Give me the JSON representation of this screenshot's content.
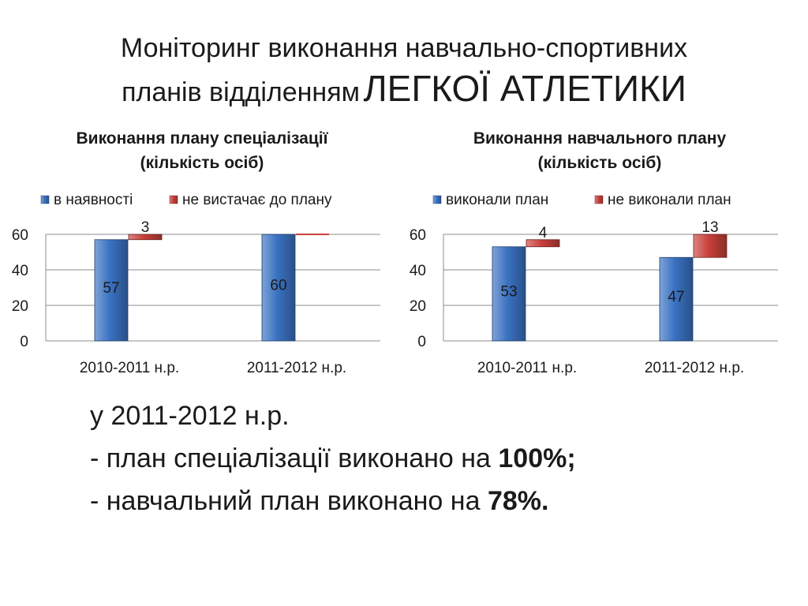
{
  "title": {
    "line1": "Моніторинг виконання навчально-спортивних",
    "line2_prefix": "планів відділенням",
    "line2_emphasis": "ЛЕГКОЇ АТЛЕТИКИ"
  },
  "chart_data": [
    {
      "type": "bar",
      "title_line1": "Виконання плану спеціалізації",
      "title_line2": "(кількість осіб)",
      "categories": [
        "2010-2011 н.р.",
        "2011-2012 н.р."
      ],
      "series": [
        {
          "name": "в наявності",
          "values": [
            57,
            60
          ],
          "color": "#3a72c2"
        },
        {
          "name": "не вистачає до плану",
          "values": [
            3,
            0
          ],
          "color": "#c8403b"
        }
      ],
      "data_labels": [
        [
          "57",
          "60"
        ],
        [
          "3",
          ""
        ]
      ],
      "ylim": [
        0,
        60
      ],
      "yticks": [
        0,
        20,
        40,
        60
      ],
      "grid": true,
      "legend": "top"
    },
    {
      "type": "bar",
      "title_line1": "Виконання навчального плану",
      "title_line2": "(кількість осіб)",
      "categories": [
        "2010-2011 н.р.",
        "2011-2012 н.р."
      ],
      "series": [
        {
          "name": "виконали план",
          "values": [
            53,
            47
          ],
          "color": "#3a72c2"
        },
        {
          "name": "не виконали план",
          "values": [
            4,
            13
          ],
          "color": "#c8403b"
        }
      ],
      "data_labels": [
        [
          "53",
          "47"
        ],
        [
          "4",
          "13"
        ]
      ],
      "ylim": [
        0,
        60
      ],
      "yticks": [
        0,
        20,
        40,
        60
      ],
      "grid": true,
      "legend": "top"
    }
  ],
  "summary": {
    "line1": "у 2011-2012 н.р.",
    "line2_text": "- план спеціалізації виконано на ",
    "line2_value": "100%;",
    "line3_text": "- навчальний план виконано  на ",
    "line3_value": "78%."
  }
}
